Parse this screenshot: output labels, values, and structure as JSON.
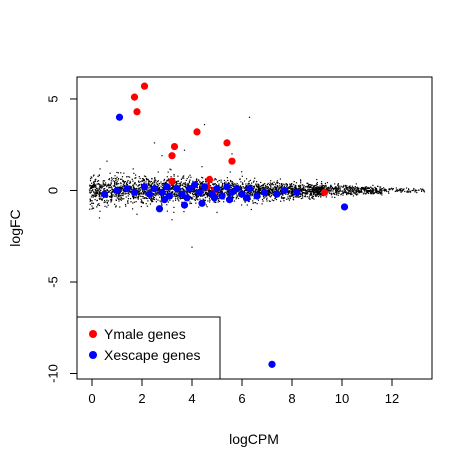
{
  "chart_data": {
    "type": "scatter",
    "xlabel": "logCPM",
    "ylabel": "logFC",
    "xlim": [
      -0.6,
      13.6
    ],
    "ylim": [
      -10.3,
      6.2
    ],
    "x_ticks": [
      "0",
      "2",
      "4",
      "6",
      "8",
      "10",
      "12"
    ],
    "x_tick_values": [
      0,
      2,
      4,
      6,
      8,
      10,
      12
    ],
    "y_ticks": [
      "5",
      "0",
      "-5",
      "-10"
    ],
    "y_tick_values": [
      5,
      0,
      -5,
      -10
    ],
    "grid": false,
    "legend": {
      "position": "bottom-left",
      "entries": [
        {
          "label": "Ymale genes",
          "color": "#ff0000"
        },
        {
          "label": "Xescape genes",
          "color": "#0000ff"
        }
      ]
    },
    "colors": {
      "background": "#000000",
      "ymale": "#ff0000",
      "xescape": "#0000ff"
    },
    "background_genes": {
      "count": 3200,
      "x_range": [
        -0.1,
        13.3
      ],
      "y_center": 0,
      "spread_note": "dense cloud of black points centered on logFC 0, narrowing with increasing logCPM",
      "outliers": [
        [
          1.0,
          4.0
        ],
        [
          4.5,
          3.6
        ],
        [
          5.6,
          2.0
        ],
        [
          3.7,
          2.2
        ],
        [
          4.0,
          -3.1
        ],
        [
          2.5,
          2.6
        ],
        [
          6.3,
          4.0
        ],
        [
          0.3,
          -1.5
        ],
        [
          0.6,
          1.6
        ],
        [
          1.8,
          -1.3
        ],
        [
          2.8,
          1.9
        ],
        [
          3.2,
          -1.6
        ],
        [
          4.4,
          1.3
        ],
        [
          5.0,
          -1.2
        ]
      ]
    },
    "series": [
      {
        "name": "Ymale genes",
        "color": "#ff0000",
        "points": [
          [
            2.1,
            5.7
          ],
          [
            1.7,
            5.1
          ],
          [
            1.8,
            4.3
          ],
          [
            4.2,
            3.2
          ],
          [
            5.4,
            2.6
          ],
          [
            3.3,
            2.4
          ],
          [
            3.2,
            1.9
          ],
          [
            5.6,
            1.6
          ],
          [
            3.2,
            0.5
          ],
          [
            4.7,
            0.6
          ],
          [
            4.6,
            0.2
          ],
          [
            9.3,
            -0.1
          ],
          [
            4.9,
            0.0
          ]
        ]
      },
      {
        "name": "Xescape genes",
        "color": "#0000ff",
        "points": [
          [
            1.1,
            4.0
          ],
          [
            7.2,
            -9.5
          ],
          [
            10.1,
            -0.9
          ],
          [
            2.7,
            -1.0
          ],
          [
            3.7,
            -0.8
          ],
          [
            4.4,
            -0.7
          ],
          [
            0.5,
            -0.2
          ],
          [
            1.4,
            0.1
          ],
          [
            1.7,
            -0.1
          ],
          [
            2.1,
            0.2
          ],
          [
            2.3,
            -0.2
          ],
          [
            2.5,
            0.1
          ],
          [
            2.8,
            -0.1
          ],
          [
            3.0,
            0.2
          ],
          [
            3.1,
            -0.3
          ],
          [
            3.4,
            0.1
          ],
          [
            3.6,
            -0.2
          ],
          [
            3.9,
            0.1
          ],
          [
            4.1,
            0.3
          ],
          [
            4.3,
            -0.1
          ],
          [
            4.5,
            0.2
          ],
          [
            4.8,
            -0.2
          ],
          [
            5.0,
            0.1
          ],
          [
            5.2,
            -0.3
          ],
          [
            5.4,
            0.2
          ],
          [
            5.6,
            -0.1
          ],
          [
            5.8,
            0.1
          ],
          [
            6.0,
            -0.2
          ],
          [
            6.3,
            0.1
          ],
          [
            6.6,
            -0.3
          ],
          [
            6.9,
            -0.1
          ],
          [
            7.4,
            -0.2
          ],
          [
            7.7,
            0.0
          ],
          [
            8.2,
            -0.1
          ],
          [
            3.8,
            -0.4
          ],
          [
            4.9,
            -0.4
          ],
          [
            2.9,
            -0.5
          ],
          [
            5.5,
            -0.5
          ],
          [
            6.2,
            -0.4
          ],
          [
            1.0,
            0.0
          ]
        ]
      }
    ]
  }
}
